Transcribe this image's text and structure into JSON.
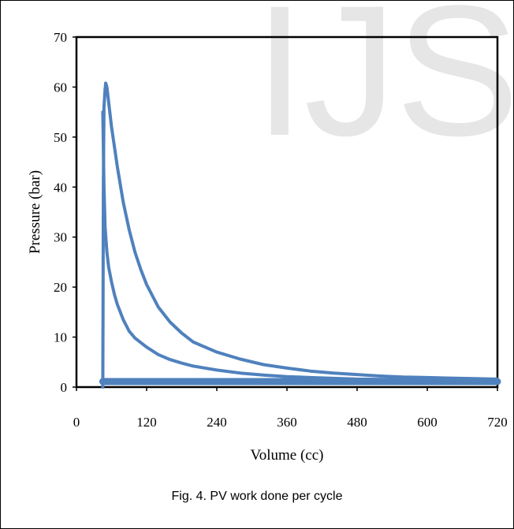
{
  "watermark": "IJS",
  "caption": "Fig. 4. PV work done per cycle",
  "chart_data": {
    "type": "line",
    "xlabel": "Volume (cc)",
    "ylabel": "Pressure (bar)",
    "xlim": [
      0,
      720
    ],
    "ylim": [
      0,
      70
    ],
    "xticks": [
      "0",
      "120",
      "240",
      "360",
      "480",
      "600",
      "720"
    ],
    "yticks": [
      "0",
      "10",
      "20",
      "30",
      "40",
      "50",
      "60",
      "70"
    ],
    "grid": false,
    "legend": "none",
    "series_color": "#4f81bd",
    "series": [
      {
        "x": [
          45,
          45.5,
          46,
          47,
          49,
          50,
          52,
          55,
          60,
          65,
          70,
          80,
          90,
          100,
          110,
          120,
          140,
          160,
          180,
          200,
          240,
          280,
          320,
          360,
          400,
          440,
          480,
          520,
          560,
          600,
          640,
          680,
          720
        ],
        "y": [
          0,
          15,
          40,
          56,
          59.5,
          60.8,
          60,
          57,
          52,
          48,
          44,
          37,
          31.5,
          27,
          23.5,
          20.5,
          16,
          13,
          10.8,
          9,
          7,
          5.6,
          4.5,
          3.8,
          3.2,
          2.8,
          2.5,
          2.2,
          2,
          1.9,
          1.8,
          1.7,
          1.6
        ]
      },
      {
        "x": [
          45,
          47,
          49,
          52,
          55,
          60,
          65,
          70,
          80,
          90,
          100,
          120,
          140,
          160,
          180,
          200,
          240,
          280,
          320,
          360,
          400,
          480,
          560,
          640,
          720
        ],
        "y": [
          55,
          40,
          32,
          27,
          24,
          21,
          18.5,
          16.5,
          13.5,
          11.2,
          9.8,
          8,
          6.5,
          5.5,
          4.8,
          4.2,
          3.4,
          2.8,
          2.4,
          2.1,
          1.9,
          1.6,
          1.5,
          1.4,
          1.3
        ]
      },
      {
        "x": [
          45,
          720
        ],
        "y": [
          1.1,
          1.1
        ]
      }
    ]
  }
}
